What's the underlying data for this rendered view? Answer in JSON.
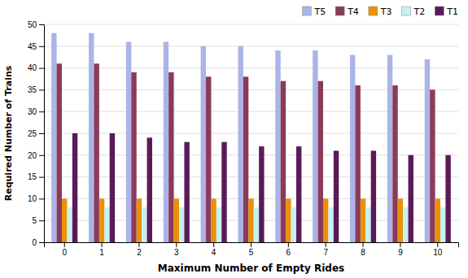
{
  "chart_data": {
    "type": "bar",
    "xlabel": "Maximum Number of Empty Rides",
    "ylabel": "Required Number of Trains",
    "categories": [
      0,
      1,
      2,
      3,
      4,
      5,
      6,
      7,
      8,
      9,
      10
    ],
    "series": [
      {
        "name": "T5",
        "color": "#aab4e8",
        "values": [
          48,
          48,
          46,
          46,
          45,
          45,
          44,
          44,
          43,
          43,
          42
        ]
      },
      {
        "name": "T4",
        "color": "#8b3a5a",
        "values": [
          41,
          41,
          39,
          39,
          38,
          38,
          37,
          37,
          36,
          36,
          35
        ]
      },
      {
        "name": "T3",
        "color": "#e8920a",
        "values": [
          10,
          10,
          10,
          10,
          10,
          10,
          10,
          10,
          10,
          10,
          10
        ]
      },
      {
        "name": "T2",
        "color": "#c8f0f0",
        "values": [
          8,
          8,
          8,
          8,
          8,
          8,
          8,
          8,
          8,
          8,
          8
        ]
      },
      {
        "name": "T1",
        "color": "#5a1a5a",
        "values": [
          25,
          25,
          24,
          23,
          23,
          22,
          22,
          21,
          21,
          20,
          20
        ]
      }
    ],
    "ylim": [
      0,
      50
    ],
    "yticks": [
      0,
      5,
      10,
      15,
      20,
      25,
      30,
      35,
      40,
      45,
      50
    ],
    "grid": true,
    "legend": "upper right"
  }
}
